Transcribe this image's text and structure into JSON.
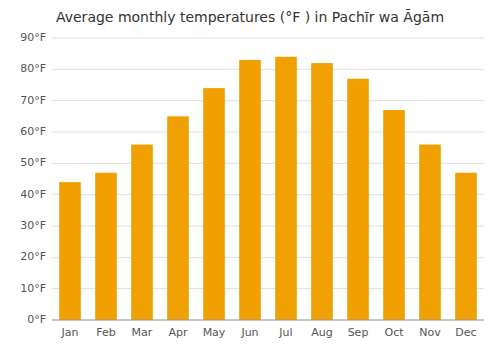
{
  "chart_data": {
    "type": "bar",
    "title": "Average monthly temperatures (°F ) in Pachīr wa Āgām",
    "categories": [
      "Jan",
      "Feb",
      "Mar",
      "Apr",
      "May",
      "Jun",
      "Jul",
      "Aug",
      "Sep",
      "Oct",
      "Nov",
      "Dec"
    ],
    "values": [
      44,
      47,
      56,
      65,
      74,
      83,
      84,
      82,
      77,
      67,
      56,
      47
    ],
    "color": "#F0A000",
    "ylim": [
      0,
      90
    ],
    "yticks": [
      {
        "value": 0,
        "label": "0°F"
      },
      {
        "value": 10,
        "label": "10°F"
      },
      {
        "value": 20,
        "label": "20°F"
      },
      {
        "value": 30,
        "label": "30°F"
      },
      {
        "value": 40,
        "label": "40°F"
      },
      {
        "value": 50,
        "label": "50°F"
      },
      {
        "value": 60,
        "label": "60°F"
      },
      {
        "value": 70,
        "label": "70°F"
      },
      {
        "value": 80,
        "label": "80°F"
      },
      {
        "value": 90,
        "label": "90°F"
      }
    ],
    "grid": true
  }
}
